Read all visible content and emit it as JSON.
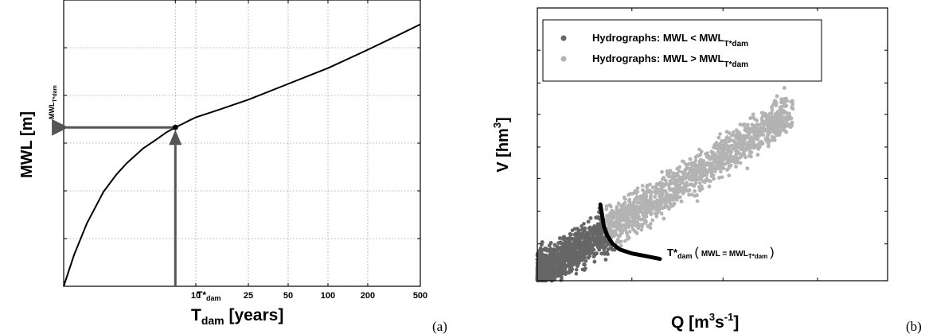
{
  "chart_data": [
    {
      "panel": "(a)",
      "type": "line",
      "title": "",
      "ylabel": "MWL [m]",
      "xlabel": {
        "base": "T",
        "sub": "dam",
        "rest": " [years]"
      },
      "x_axis_scale": "log",
      "x_ticks": [
        {
          "value": 10,
          "label": "10"
        },
        {
          "value": 25,
          "label": "25"
        },
        {
          "value": 50,
          "label": "50"
        },
        {
          "value": 100,
          "label": "100"
        },
        {
          "value": 200,
          "label": "200"
        },
        {
          "value": 500,
          "label": "500"
        }
      ],
      "xlim": [
        1,
        500
      ],
      "y_tick_labels_shown": false,
      "ylim": [
        0,
        1
      ],
      "grid": true,
      "series": [
        {
          "x": [
            1,
            1.2,
            1.5,
            2,
            2.5,
            3,
            4,
            5,
            6,
            7,
            8,
            9,
            10,
            15,
            25,
            50,
            100,
            200,
            350,
            500
          ],
          "y": [
            0.0,
            0.11,
            0.22,
            0.33,
            0.39,
            0.43,
            0.482,
            0.512,
            0.538,
            0.555,
            0.568,
            0.58,
            0.59,
            0.617,
            0.652,
            0.707,
            0.762,
            0.826,
            0.88,
            0.915
          ]
        }
      ],
      "marker_point": {
        "x": 7,
        "y": 0.555
      },
      "annotations": {
        "t_star": {
          "base": "T*",
          "sub": "dam"
        },
        "mwl_star": {
          "base": "MWL",
          "sub": "T*dam"
        }
      }
    },
    {
      "panel": "(b)",
      "type": "scatter",
      "title": "",
      "ylabel": {
        "base": "V [hm",
        "sup": "3",
        "rest": "]"
      },
      "xlabel": {
        "base": "Q [m",
        "sup1": "3",
        "mid": "s",
        "sup2": "-1",
        "rest": "]"
      },
      "tick_labels_shown": false,
      "xlim": [
        0,
        1
      ],
      "ylim": [
        0,
        1
      ],
      "legend_position": "top-left",
      "series": [
        {
          "name": "Hydrographs: MWL < MWL",
          "name_sub": "T*dam",
          "color": "#666666"
        },
        {
          "name": "Hydrographs: MWL > MWL",
          "name_sub": "T*dam",
          "color": "#b3b3b3"
        }
      ],
      "threshold_curve": {
        "x": [
          0.18,
          0.185,
          0.19,
          0.2,
          0.215,
          0.235,
          0.27,
          0.31,
          0.35
        ],
        "y": [
          0.28,
          0.24,
          0.2,
          0.165,
          0.135,
          0.115,
          0.1,
          0.09,
          0.08
        ]
      },
      "curve_label": {
        "base": "T*",
        "sub": "dam",
        "paren_open": "(",
        "eq": "MWL = MWL",
        "eq_sub": "T*dam",
        "paren_close": ")"
      }
    }
  ]
}
